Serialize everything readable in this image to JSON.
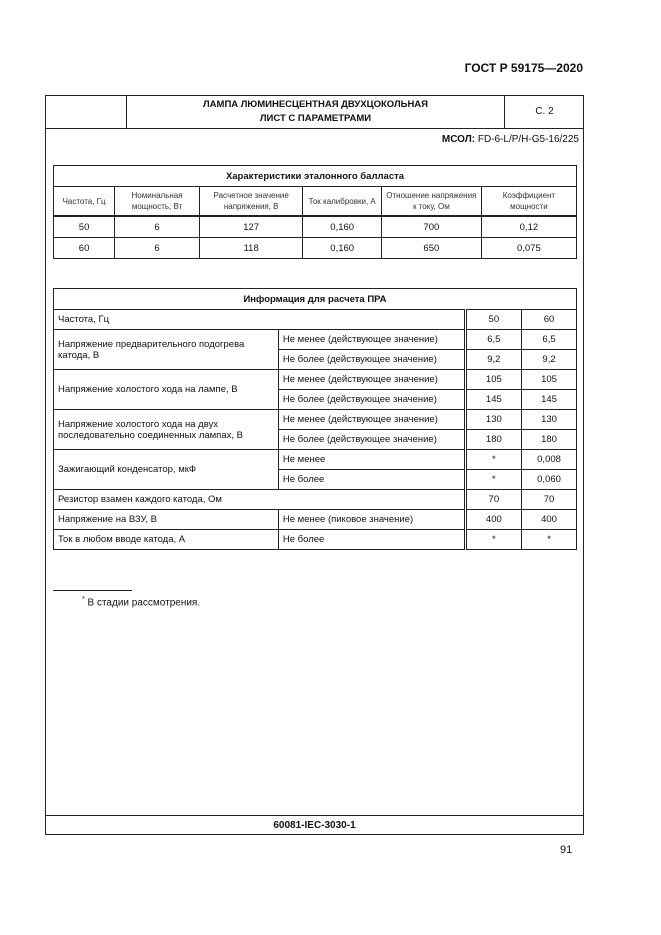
{
  "header": {
    "standard": "ГОСТ Р 59175—2020",
    "title_line1": "ЛАМПА ЛЮМИНЕСЦЕНТНАЯ ДВУХЦОКОЛЬНАЯ",
    "title_line2": "ЛИСТ С ПАРАМЕТРАМИ",
    "sheet": "С. 2",
    "msol_label": "МСОЛ:",
    "msol_value": "FD-6-L/P/H-G5-16/225"
  },
  "ballast": {
    "title": "Характеристики эталонного балласта",
    "columns": [
      "Частота, Гц",
      "Номинальная мощность, Вт",
      "Расчетное значение напряжения, В",
      "Ток калибровки, А",
      "Отношение напряже­ния к току, Ом",
      "Коэффициент мощности"
    ],
    "rows": [
      [
        "50",
        "6",
        "127",
        "0,160",
        "700",
        "0,12"
      ],
      [
        "60",
        "6",
        "118",
        "0,160",
        "650",
        "0,075"
      ]
    ]
  },
  "pra": {
    "title": "Информация для расчета ПРА",
    "freq_label": "Частота, Гц",
    "freq": [
      "50",
      "60"
    ],
    "preheat": {
      "label": "Напряжение предварительного подогрева катода, В",
      "min": "Не менее (действующее значение)",
      "max": "Не более (действующее значение)",
      "min_v": [
        "6,5",
        "6,5"
      ],
      "max_v": [
        "9,2",
        "9,2"
      ]
    },
    "ocv_lamp": {
      "label": "Напряжение холостого хода на лампе, В",
      "min": "Не менее (действующее значение)",
      "max": "Не более (действующее значение)",
      "min_v": [
        "105",
        "105"
      ],
      "max_v": [
        "145",
        "145"
      ]
    },
    "ocv_two": {
      "label": "Напряжение холостого хода на двух последовательно соединенных лампах, В",
      "min": "Не менее (действующее значение)",
      "max": "Не более (действующее значение)",
      "min_v": [
        "130",
        "130"
      ],
      "max_v": [
        "180",
        "180"
      ]
    },
    "capacitor": {
      "label": "Зажигающий конденсатор, мкФ",
      "min": "Не менее",
      "max": "Не более",
      "min_v": [
        "*",
        "0,008"
      ],
      "max_v": [
        "*",
        "0,060"
      ]
    },
    "resistor": {
      "label": "Резистор взамен каждого катода, Ом",
      "v": [
        "70",
        "70"
      ]
    },
    "vzu": {
      "label": "Напряжение на ВЗУ, В",
      "cond": "Не менее (пиковое значение)",
      "v": [
        "400",
        "400"
      ]
    },
    "current": {
      "label": "Ток в любом вводе катода, А",
      "cond": "Не более",
      "v": [
        "*",
        "*"
      ]
    }
  },
  "footnote": {
    "mark": "*",
    "text": " В стадии рассмотрения."
  },
  "footer": {
    "code": "60081-IEC-3030-1",
    "page_number": "91"
  }
}
